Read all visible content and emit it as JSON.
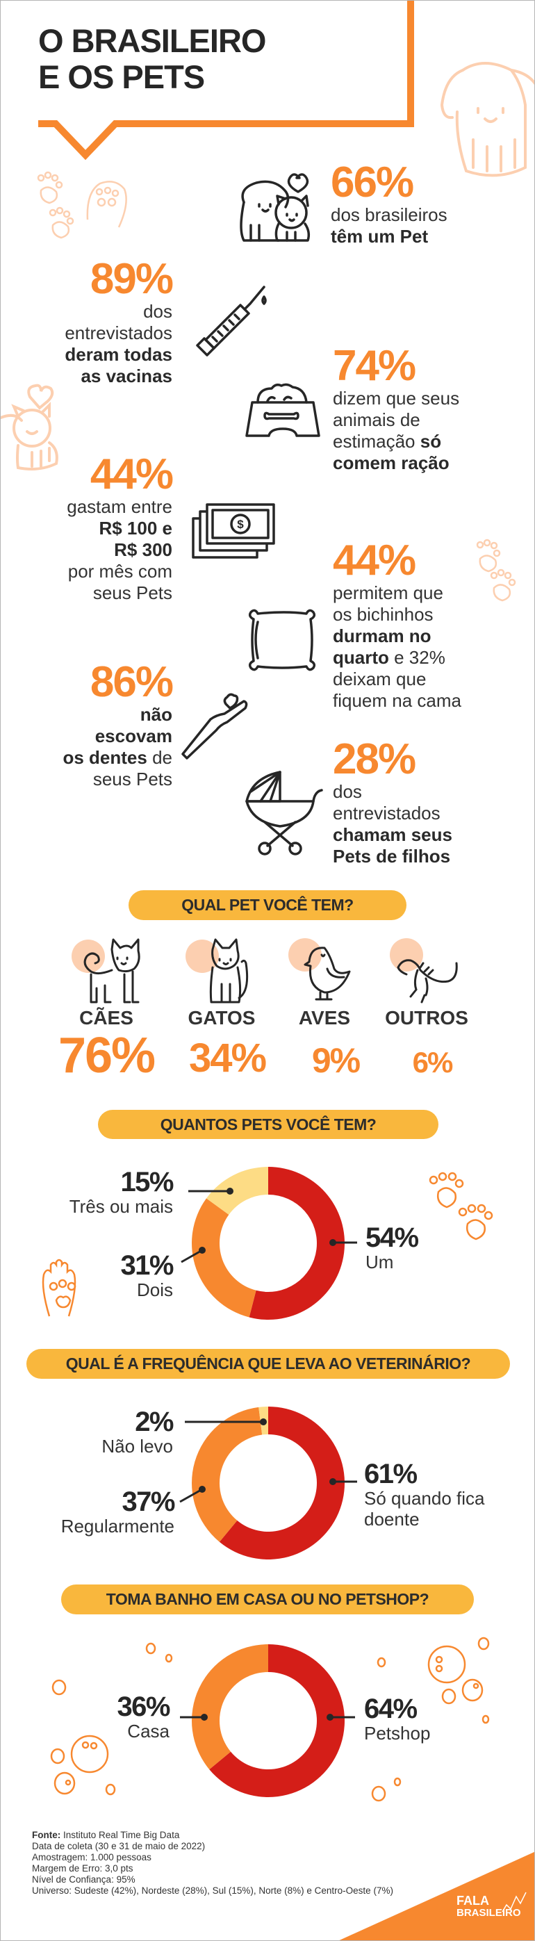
{
  "header": {
    "title_line1": "O BRASILEIRO",
    "title_line2": "E OS PETS"
  },
  "stats": [
    {
      "id": "has-pet",
      "percent": "66%",
      "icon": "dog-and-cat-icon",
      "lines": [
        [
          {
            "t": "dos brasileiros",
            "b": false
          }
        ],
        [
          {
            "t": "têm um Pet",
            "b": true
          }
        ]
      ]
    },
    {
      "id": "vaccines",
      "percent": "89%",
      "icon": "syringe-icon",
      "lines": [
        [
          {
            "t": "dos",
            "b": false
          }
        ],
        [
          {
            "t": "entrevistados",
            "b": false
          }
        ],
        [
          {
            "t": "deram todas",
            "b": true
          }
        ],
        [
          {
            "t": "as vacinas",
            "b": true
          }
        ]
      ]
    },
    {
      "id": "food",
      "percent": "74%",
      "icon": "food-bowl-icon",
      "lines": [
        [
          {
            "t": "dizem que seus",
            "b": false
          }
        ],
        [
          {
            "t": "animais de",
            "b": false
          }
        ],
        [
          {
            "t": "estimação ",
            "b": false
          },
          {
            "t": "só",
            "b": true
          }
        ],
        [
          {
            "t": "comem ração",
            "b": true
          }
        ]
      ]
    },
    {
      "id": "spending",
      "percent": "44%",
      "icon": "money-icon",
      "lines": [
        [
          {
            "t": "gastam entre",
            "b": false
          }
        ],
        [
          {
            "t": "R$ 100 e",
            "b": true
          }
        ],
        [
          {
            "t": "R$ 300",
            "b": true
          }
        ],
        [
          {
            "t": "por mês com",
            "b": false
          }
        ],
        [
          {
            "t": "seus Pets",
            "b": false
          }
        ]
      ]
    },
    {
      "id": "sleep",
      "percent": "44%",
      "icon": "pillow-icon",
      "lines": [
        [
          {
            "t": "permitem que",
            "b": false
          }
        ],
        [
          {
            "t": "os bichinhos",
            "b": false
          }
        ],
        [
          {
            "t": "durmam no",
            "b": true
          }
        ],
        [
          {
            "t": "quarto",
            "b": true
          },
          {
            "t": " e 32%",
            "b": false
          }
        ],
        [
          {
            "t": "deixam que",
            "b": false
          }
        ],
        [
          {
            "t": "fiquem na cama",
            "b": false
          }
        ]
      ]
    },
    {
      "id": "teeth",
      "percent": "86%",
      "icon": "toothbrush-icon",
      "lines": [
        [
          {
            "t": "não",
            "b": true
          }
        ],
        [
          {
            "t": "escovam",
            "b": true
          }
        ],
        [
          {
            "t": "os dentes",
            "b": true
          },
          {
            "t": " de",
            "b": false
          }
        ],
        [
          {
            "t": "seus Pets",
            "b": false
          }
        ]
      ]
    },
    {
      "id": "children",
      "percent": "28%",
      "icon": "stroller-icon",
      "lines": [
        [
          {
            "t": "dos",
            "b": false
          }
        ],
        [
          {
            "t": "entrevistados",
            "b": false
          }
        ],
        [
          {
            "t": "chamam seus",
            "b": true
          }
        ],
        [
          {
            "t": "Pets de filhos",
            "b": true
          }
        ]
      ]
    }
  ],
  "pets_section": {
    "title": "QUAL PET VOCÊ TEM?",
    "items": [
      {
        "label": "CÃES",
        "percent": "76%",
        "value": 76,
        "icon": "dog-icon"
      },
      {
        "label": "GATOS",
        "percent": "34%",
        "value": 34,
        "icon": "cat-icon"
      },
      {
        "label": "AVES",
        "percent": "9%",
        "value": 9,
        "icon": "bird-icon"
      },
      {
        "label": "OUTROS",
        "percent": "6%",
        "value": 6,
        "icon": "lizard-icon"
      }
    ]
  },
  "colors": {
    "accent_orange": "#f7882f",
    "pill_yellow": "#f9b73d",
    "red": "#d41e18",
    "light_yellow": "#fddc85",
    "peach": "#fccfb0"
  },
  "chart_data": [
    {
      "type": "pie",
      "title": "QUANTOS PETS VOCÊ TEM?",
      "categories": [
        "Um",
        "Dois",
        "Três ou mais"
      ],
      "values": [
        54,
        31,
        15
      ],
      "labels": [
        "54%",
        "31%",
        "15%"
      ],
      "colors": [
        "#d41e18",
        "#f7882f",
        "#fddc85"
      ]
    },
    {
      "type": "pie",
      "title": "QUAL É A FREQUÊNCIA QUE LEVA AO VETERINÁRIO?",
      "categories": [
        "Só quando fica doente",
        "Regularmente",
        "Não levo"
      ],
      "values": [
        61,
        37,
        2
      ],
      "labels": [
        "61%",
        "37%",
        "2%"
      ],
      "colors": [
        "#d41e18",
        "#f7882f",
        "#fddc85"
      ]
    },
    {
      "type": "pie",
      "title": "TOMA BANHO EM CASA OU NO PETSHOP?",
      "categories": [
        "Petshop",
        "Casa"
      ],
      "values": [
        64,
        36
      ],
      "labels": [
        "64%",
        "36%"
      ],
      "colors": [
        "#d41e18",
        "#f7882f"
      ]
    }
  ],
  "footer": {
    "source_label": "Fonte:",
    "source": " Instituto Real Time Big Data",
    "date": "Data de coleta (30 e 31 de maio de 2022)",
    "sample": "Amostragem: 1.000 pessoas",
    "margin": "Margem de Erro: 3,0 pts",
    "confidence": "Nível de Confiança: 95%",
    "universe": "Universo: Sudeste (42%), Nordeste (28%), Sul (15%), Norte (8%) e Centro-Oeste (7%)"
  },
  "logo": {
    "line1": "FALA",
    "line2": "BRASILEIRO"
  }
}
